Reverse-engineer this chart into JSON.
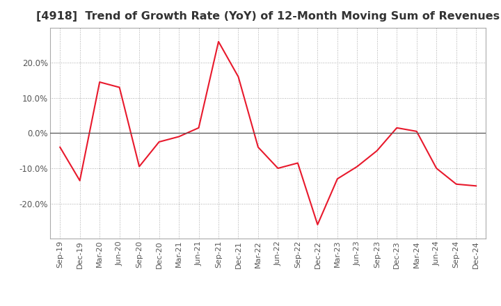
{
  "title": "[4918]  Trend of Growth Rate (YoY) of 12-Month Moving Sum of Revenues",
  "title_fontsize": 11.5,
  "line_color": "#e8192c",
  "background_color": "#ffffff",
  "grid_color": "#aaaaaa",
  "x_labels": [
    "Sep-19",
    "Dec-19",
    "Mar-20",
    "Jun-20",
    "Sep-20",
    "Dec-20",
    "Mar-21",
    "Jun-21",
    "Sep-21",
    "Dec-21",
    "Mar-22",
    "Jun-22",
    "Sep-22",
    "Dec-22",
    "Mar-23",
    "Jun-23",
    "Sep-23",
    "Dec-23",
    "Mar-24",
    "Jun-24",
    "Sep-24",
    "Dec-24"
  ],
  "y_values": [
    -4.0,
    -13.5,
    14.5,
    13.0,
    -9.5,
    -2.5,
    -1.0,
    1.5,
    26.0,
    16.0,
    -4.0,
    -10.0,
    -8.5,
    -26.0,
    -13.0,
    -9.5,
    -5.0,
    1.5,
    0.5,
    -10.0,
    -14.5,
    -15.0
  ],
  "ylim": [
    -30,
    30
  ],
  "yticks": [
    -20.0,
    -10.0,
    0.0,
    10.0,
    20.0
  ],
  "spine_color": "#aaaaaa",
  "zero_line_color": "#555555",
  "tick_label_color": "#555555"
}
